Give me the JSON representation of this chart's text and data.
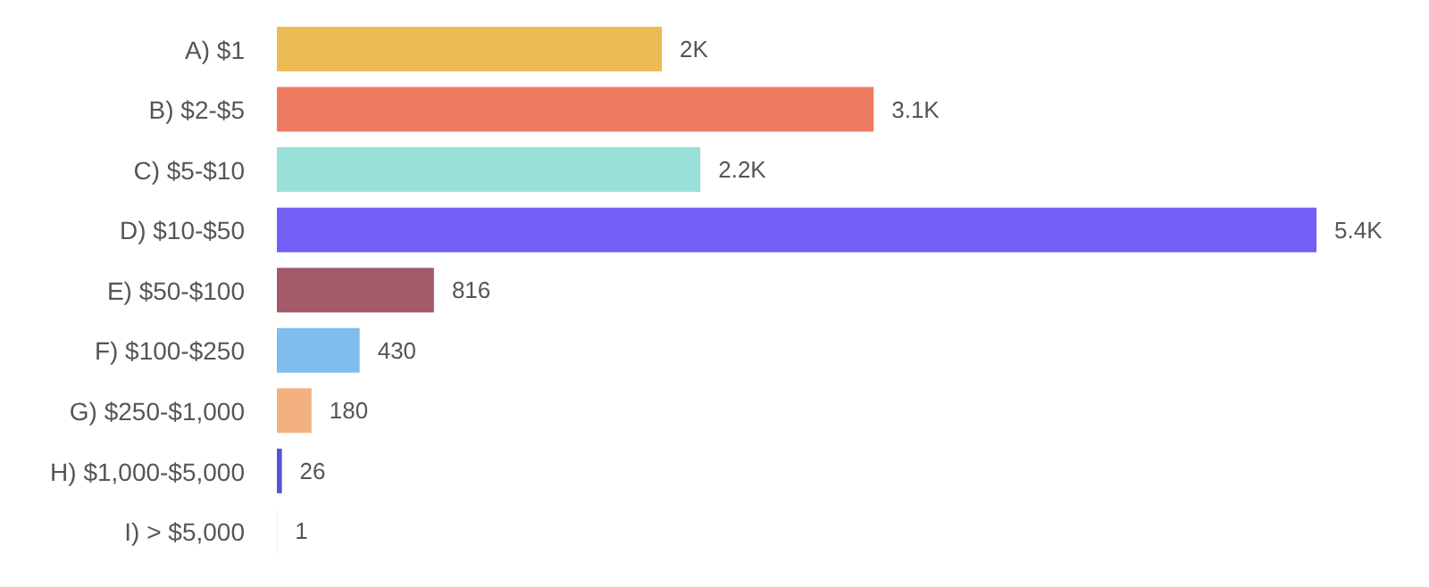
{
  "chart_data": {
    "type": "bar",
    "orientation": "horizontal",
    "categories": [
      "A) $1",
      "B) $2-$5",
      "C) $5-$10",
      "D) $10-$50",
      "E) $50-$100",
      "F) $100-$250",
      "G) $250-$1,000",
      "H) $1,000-$5,000",
      "I) > $5,000"
    ],
    "values": [
      2000,
      3100,
      2200,
      5400,
      816,
      430,
      180,
      26,
      1
    ],
    "value_labels": [
      "2K",
      "3.1K",
      "2.2K",
      "5.4K",
      "816",
      "430",
      "180",
      "26",
      "1"
    ],
    "colors": [
      "#ecbb55",
      "#ee7b5f",
      "#98e0d8",
      "#725ff5",
      "#a45a6b",
      "#80bcec",
      "#f2b07e",
      "#5a50d8",
      "#8fd0a8"
    ],
    "tick_labels": "y"
  }
}
